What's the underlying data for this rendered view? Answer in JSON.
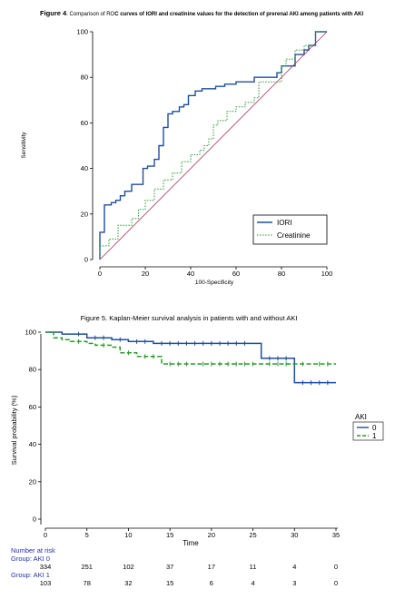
{
  "chart_data": [
    {
      "type": "line",
      "title_prefix": "Figure 4",
      "title_mid": ". Comparison of RO",
      "title_rest": "C curves of IORI and creatinine values for the detection of prerenal AKI among patients with AKI",
      "xlabel": "100-Specificity",
      "ylabel": "Sensitivity",
      "xlim": [
        0,
        100
      ],
      "ylim": [
        0,
        100
      ],
      "xticks": [
        "0",
        "20",
        "40",
        "60",
        "80",
        "100"
      ],
      "yticks": [
        "0",
        "20",
        "40",
        "60",
        "80",
        "100"
      ],
      "legend_position": "bottom-right",
      "colors": {
        "IORI": "#1f4e9c",
        "Creatinine": "#2e9a2e",
        "diagonal": "#b03060"
      },
      "series": [
        {
          "name": "IORI",
          "style": "solid",
          "x": [
            0,
            0,
            2,
            2,
            5,
            5,
            7,
            7,
            9,
            9,
            11,
            11,
            14,
            14,
            19,
            19,
            21,
            21,
            24,
            24,
            26,
            26,
            28,
            28,
            30,
            30,
            32,
            32,
            35,
            35,
            37,
            37,
            39,
            39,
            42,
            42,
            45,
            45,
            48,
            48,
            51,
            51,
            55,
            55,
            60,
            60,
            63,
            63,
            68,
            68,
            75,
            75,
            78,
            78,
            80,
            80,
            83,
            83,
            86,
            86,
            90,
            90,
            92,
            92,
            95,
            95,
            100
          ],
          "y": [
            0,
            12,
            12,
            24,
            24,
            25,
            25,
            26,
            26,
            28,
            28,
            30,
            30,
            33,
            33,
            40,
            40,
            41,
            41,
            44,
            44,
            50,
            50,
            58,
            58,
            64,
            64,
            65,
            65,
            67,
            67,
            68,
            68,
            72,
            72,
            74,
            74,
            75,
            75,
            75,
            75,
            76,
            76,
            77,
            77,
            78,
            78,
            78,
            78,
            80,
            80,
            80,
            80,
            82,
            82,
            85,
            85,
            85,
            85,
            90,
            90,
            92,
            92,
            94,
            94,
            100,
            100
          ]
        },
        {
          "name": "Creatinine",
          "style": "dotted",
          "x": [
            0,
            0,
            4,
            4,
            8,
            8,
            14,
            14,
            17,
            17,
            20,
            20,
            24,
            24,
            28,
            28,
            32,
            32,
            36,
            36,
            40,
            40,
            44,
            44,
            46,
            46,
            48,
            48,
            50,
            50,
            52,
            52,
            56,
            56,
            60,
            60,
            64,
            64,
            68,
            68,
            70,
            70,
            72,
            72,
            80,
            80,
            82,
            82,
            86,
            86,
            90,
            90,
            95,
            95,
            100
          ],
          "y": [
            0,
            6,
            6,
            9,
            9,
            15,
            15,
            18,
            18,
            22,
            22,
            26,
            26,
            31,
            31,
            35,
            35,
            38,
            38,
            43,
            43,
            46,
            46,
            48,
            48,
            50,
            50,
            53,
            53,
            59,
            59,
            61,
            61,
            65,
            65,
            67,
            67,
            69,
            69,
            71,
            71,
            78,
            78,
            78,
            78,
            85,
            85,
            88,
            88,
            92,
            92,
            94,
            94,
            100,
            100
          ]
        },
        {
          "name": "",
          "style": "reference",
          "x": [
            0,
            100
          ],
          "y": [
            0,
            100
          ]
        }
      ]
    },
    {
      "type": "line",
      "title": "Figure 5. Kaplan-Meier survival analysis in patients with and without AKI",
      "xlabel": "Time",
      "ylabel": "Survival probability (%)",
      "xlim": [
        0,
        35
      ],
      "ylim": [
        0,
        100
      ],
      "xticks": [
        "0",
        "5",
        "10",
        "15",
        "20",
        "25",
        "30",
        "35"
      ],
      "yticks": [
        "0",
        "20",
        "40",
        "60",
        "80",
        "100"
      ],
      "legend_title": "AKI",
      "legend_position": "right",
      "colors": {
        "0": "#1f4e9c",
        "1": "#2e9a2e"
      },
      "series": [
        {
          "name": "0",
          "style": "solid",
          "x": [
            0,
            2,
            2,
            5,
            5,
            8,
            8,
            10,
            10,
            13,
            13,
            26,
            26,
            30,
            30,
            35
          ],
          "y": [
            100,
            100,
            99,
            99,
            97,
            97,
            96,
            96,
            95,
            95,
            94,
            94,
            86,
            86,
            73,
            73
          ],
          "censor_x": [
            4,
            6,
            7,
            9,
            11,
            12,
            14,
            15,
            16,
            17,
            18,
            19,
            20,
            21,
            22,
            23,
            24,
            27,
            28,
            29,
            31,
            32,
            33,
            34
          ]
        },
        {
          "name": "1",
          "style": "dashed",
          "x": [
            0,
            1,
            1,
            2,
            2,
            3,
            3,
            5,
            5,
            6,
            6,
            8,
            8,
            9,
            9,
            11,
            11,
            14,
            14,
            35
          ],
          "y": [
            100,
            100,
            97,
            97,
            96,
            96,
            95,
            95,
            94,
            94,
            93,
            93,
            92,
            92,
            89,
            89,
            87,
            87,
            83,
            83
          ],
          "censor_x": [
            4,
            7,
            10,
            12,
            13,
            15,
            16,
            17,
            19,
            20,
            21,
            22,
            23,
            24,
            25,
            27,
            28,
            29,
            31,
            33,
            34
          ]
        }
      ],
      "number_at_risk": {
        "header": "Number at risk",
        "groups": [
          {
            "label": "Group: AKI 0",
            "values": [
              "334",
              "251",
              "102",
              "37",
              "17",
              "11",
              "4",
              "0"
            ]
          },
          {
            "label": "Group: AKI 1",
            "values": [
              "103",
              "78",
              "32",
              "15",
              "6",
              "4",
              "3",
              "0"
            ]
          }
        ]
      }
    }
  ]
}
